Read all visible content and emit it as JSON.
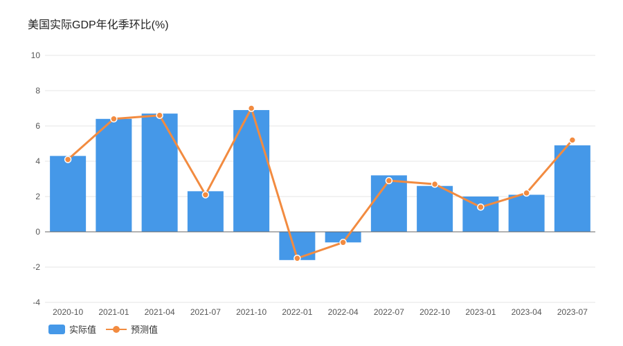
{
  "title": "美国实际GDP年化季环比(%)",
  "colors": {
    "bar": "#4598e8",
    "line": "#f28b40",
    "grid": "#e6e6e6",
    "axis": "#555555"
  },
  "chart_data": {
    "type": "bar",
    "title": "美国实际GDP年化季环比(%)",
    "categories": [
      "2020-10",
      "2021-01",
      "2021-04",
      "2021-07",
      "2021-10",
      "2022-01",
      "2022-04",
      "2022-07",
      "2022-10",
      "2023-01",
      "2023-04",
      "2023-07"
    ],
    "series": [
      {
        "name": "实际值",
        "type": "bar",
        "values": [
          4.3,
          6.4,
          6.7,
          2.3,
          6.9,
          -1.6,
          -0.6,
          3.2,
          2.6,
          2.0,
          2.1,
          4.9
        ]
      },
      {
        "name": "预测值",
        "type": "line",
        "values": [
          4.1,
          6.4,
          6.6,
          2.1,
          7.0,
          -1.5,
          -0.6,
          2.9,
          2.7,
          1.4,
          2.2,
          5.2
        ]
      }
    ],
    "ylim": [
      -4,
      10
    ],
    "yticks": [
      -4,
      -2,
      0,
      2,
      4,
      6,
      8,
      10
    ],
    "grid": true,
    "legend": "bottom-left"
  }
}
